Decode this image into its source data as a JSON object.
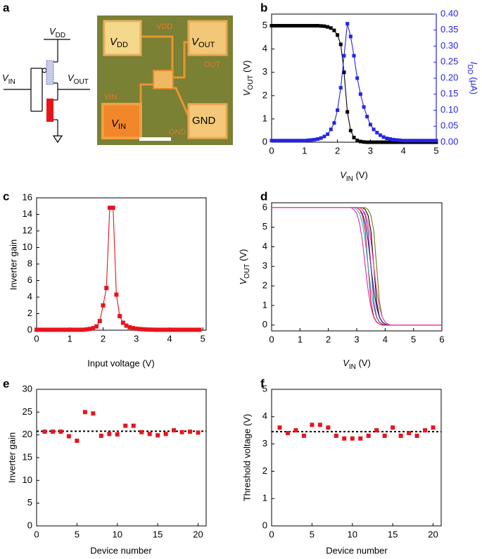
{
  "panel_labels": [
    "a",
    "b",
    "c",
    "d",
    "e",
    "f"
  ],
  "diagram": {
    "circuit": {
      "vdd": [
        "V",
        "DD"
      ],
      "vin": [
        "V",
        "IN"
      ],
      "vout": [
        "V",
        "OUT"
      ]
    },
    "micrograph": {
      "pads": [
        [
          "V",
          "DD"
        ],
        [
          "V",
          "OUT"
        ],
        [
          "V",
          "IN"
        ],
        "GND"
      ],
      "markings": [
        "VDD",
        "OUT",
        "VIN",
        "GND"
      ]
    }
  },
  "chart_data": [
    {
      "type": "line",
      "x": [
        0,
        0.1,
        0.2,
        0.3,
        0.4,
        0.5,
        0.6,
        0.7,
        0.8,
        0.9,
        1.0,
        1.1,
        1.2,
        1.3,
        1.4,
        1.5,
        1.6,
        1.7,
        1.8,
        1.9,
        2.0,
        2.1,
        2.2,
        2.3,
        2.4,
        2.5,
        2.6,
        2.7,
        2.8,
        2.9,
        3.0,
        3.1,
        3.2,
        3.3,
        3.4,
        3.5,
        3.6,
        3.7,
        3.8,
        3.9,
        4.0,
        4.1,
        4.2,
        4.3,
        4.4,
        4.5,
        4.6,
        4.7,
        4.8,
        4.9,
        5.0
      ],
      "series": [
        {
          "color": "#000000",
          "marker": "square",
          "values": [
            5,
            5,
            5,
            5,
            5,
            5,
            5,
            5,
            5,
            5,
            5,
            5,
            5,
            5,
            5,
            4.99,
            4.98,
            4.95,
            4.9,
            4.8,
            4.6,
            4.2,
            3.0,
            1.3,
            0.5,
            0.2,
            0.08,
            0.03,
            0.01,
            0,
            0,
            0,
            0,
            0,
            0,
            0,
            0,
            0,
            0,
            0,
            0,
            0,
            0,
            0,
            0,
            0,
            0,
            0,
            0,
            0,
            0
          ]
        },
        {
          "color": "#2424e8",
          "marker": "square",
          "axis": "y2",
          "values": [
            0.005,
            0.005,
            0.005,
            0.005,
            0.005,
            0.005,
            0.005,
            0.005,
            0.005,
            0.005,
            0.005,
            0.006,
            0.007,
            0.008,
            0.01,
            0.013,
            0.018,
            0.025,
            0.04,
            0.06,
            0.1,
            0.17,
            0.27,
            0.37,
            0.33,
            0.27,
            0.2,
            0.15,
            0.11,
            0.08,
            0.055,
            0.04,
            0.03,
            0.022,
            0.016,
            0.012,
            0.01,
            0.008,
            0.007,
            0.006,
            0.005,
            0.005,
            0.005,
            0.005,
            0.005,
            0.005,
            0.005,
            0.005,
            0.005,
            0.005,
            0.005
          ]
        }
      ],
      "xlim": [
        0,
        5
      ],
      "xticks": [
        0,
        1,
        2,
        3,
        4,
        5
      ],
      "ylim": [
        0,
        5.5
      ],
      "yticks": [
        0,
        1,
        2,
        3,
        4,
        5
      ],
      "y2lim": [
        0,
        0.4
      ],
      "y2ticks": [
        {
          "value": 0,
          "label": "0.00"
        },
        0.05,
        {
          "value": 0.1,
          "label": "0.10"
        },
        0.15,
        {
          "value": 0.2,
          "label": "0.20"
        },
        0.25,
        {
          "value": 0.3,
          "label": "0.30"
        },
        0.35,
        {
          "value": 0.4,
          "label": "0.40"
        }
      ],
      "y2color": "#2424e8",
      "xlabel": [
        "V",
        "IN",
        " (V)"
      ],
      "ylabel": [
        "V",
        "OUT",
        " (V)"
      ],
      "y2label": [
        "I",
        "DD",
        " (μA)"
      ]
    },
    {
      "type": "line",
      "x": [
        0,
        0.1,
        0.2,
        0.3,
        0.4,
        0.5,
        0.6,
        0.7,
        0.8,
        0.9,
        1.0,
        1.1,
        1.2,
        1.3,
        1.4,
        1.5,
        1.6,
        1.7,
        1.8,
        1.9,
        2.0,
        2.1,
        2.2,
        2.3,
        2.4,
        2.5,
        2.6,
        2.7,
        2.8,
        2.9,
        3.0,
        3.1,
        3.2,
        3.3,
        3.4,
        3.5,
        3.6,
        3.7,
        3.8,
        3.9,
        4.0,
        4.1,
        4.2,
        4.3,
        4.4,
        4.5,
        4.6,
        4.7,
        4.8,
        4.9
      ],
      "series": [
        {
          "color": "#e8141c",
          "marker": "square",
          "values": [
            0.05,
            0.05,
            0.05,
            0.05,
            0.05,
            0.05,
            0.05,
            0.05,
            0.05,
            0.05,
            0.05,
            0.05,
            0.05,
            0.05,
            0.05,
            0.1,
            0.15,
            0.25,
            0.45,
            1.1,
            3.0,
            5.1,
            14.8,
            14.8,
            4.3,
            1.7,
            0.9,
            0.55,
            0.35,
            0.25,
            0.18,
            0.14,
            0.11,
            0.09,
            0.07,
            0.06,
            0.05,
            0.05,
            0.05,
            0.05,
            0.05,
            0.05,
            0.05,
            0.05,
            0.05,
            0.05,
            0.05,
            0.05,
            0.05,
            0.05
          ]
        }
      ],
      "xlim": [
        0,
        5.1
      ],
      "xticks": [
        0,
        1,
        2,
        3,
        4,
        5
      ],
      "ylim": [
        0,
        16
      ],
      "yticks": [
        0,
        2,
        4,
        6,
        8,
        10,
        12,
        14,
        16
      ],
      "xlabel": "Input voltage (V)",
      "ylabel": "Inverter gain"
    },
    {
      "type": "line",
      "x": [
        0,
        1,
        2,
        2.5,
        2.8,
        2.9,
        3.0,
        3.1,
        3.2,
        3.3,
        3.4,
        3.5,
        3.6,
        3.7,
        3.8,
        3.9,
        4.0,
        4.1,
        4.2,
        4.4,
        4.7,
        5,
        6
      ],
      "series": [
        {
          "color": "#000000",
          "values": [
            6,
            6,
            6,
            6,
            6,
            6,
            6,
            6,
            6,
            5.9,
            5.6,
            4.8,
            3.0,
            1.2,
            0.4,
            0.15,
            0.05,
            0,
            0,
            0,
            0,
            0,
            0
          ]
        },
        {
          "color": "#1c1c80",
          "values": [
            6,
            6,
            6,
            6,
            6,
            6,
            6,
            5.9,
            5.7,
            5.2,
            4.3,
            3.0,
            1.8,
            0.9,
            0.4,
            0.15,
            0.05,
            0,
            0,
            0,
            0,
            0,
            0
          ]
        },
        {
          "color": "#e01ec8",
          "values": [
            6,
            6,
            6,
            6,
            6,
            5.9,
            5.7,
            5.2,
            4.3,
            3.0,
            1.8,
            0.9,
            0.4,
            0.15,
            0.05,
            0,
            0,
            0,
            0,
            0,
            0,
            0,
            0
          ]
        },
        {
          "color": "#e8141c",
          "values": [
            6,
            6,
            6,
            6,
            6,
            6,
            6,
            5.9,
            5.6,
            4.8,
            3.0,
            1.2,
            0.4,
            0.15,
            0.05,
            0,
            0,
            0,
            0,
            0,
            0,
            0,
            0
          ]
        },
        {
          "color": "#6b7a10",
          "values": [
            6,
            6,
            6,
            6,
            6,
            6,
            6,
            6,
            6,
            6,
            5.9,
            5.6,
            4.8,
            3.0,
            1.2,
            0.4,
            0.15,
            0.05,
            0,
            0,
            0,
            0,
            0
          ]
        },
        {
          "color": "#18b8c8",
          "values": [
            6,
            6,
            6,
            6,
            6,
            6,
            5.9,
            5.7,
            5.2,
            4.3,
            3.0,
            1.8,
            0.9,
            0.4,
            0.15,
            0.05,
            0,
            0,
            0,
            0,
            0,
            0,
            0
          ]
        },
        {
          "color": "#7a2a9a",
          "values": [
            6,
            6,
            6,
            6,
            6,
            6,
            6,
            6,
            5.9,
            5.6,
            4.8,
            3.0,
            1.2,
            0.4,
            0.15,
            0.05,
            0,
            0,
            0,
            0,
            0,
            0,
            0
          ]
        },
        {
          "color": "#ff3fa0",
          "values": [
            6,
            6,
            6,
            6,
            6,
            6,
            6,
            6,
            5.9,
            5.7,
            5.2,
            4.3,
            3.0,
            1.8,
            0.9,
            0.4,
            0.15,
            0.05,
            0,
            0,
            0,
            0,
            0
          ]
        }
      ],
      "xlim": [
        0,
        6
      ],
      "xticks": [
        0,
        1,
        2,
        3,
        4,
        5,
        6
      ],
      "ylim": [
        -0.3,
        6.25
      ],
      "yticks": [
        0,
        1,
        2,
        3,
        4,
        5,
        6
      ],
      "xlabel": [
        "V",
        "IN",
        " (V)"
      ],
      "ylabel": [
        "V",
        "OUT",
        " (V)"
      ]
    },
    {
      "type": "scatter",
      "x": [
        1,
        2,
        3,
        4,
        5,
        6,
        7,
        8,
        9,
        10,
        11,
        12,
        13,
        14,
        15,
        16,
        17,
        18,
        19,
        20
      ],
      "series": [
        {
          "color": "#e8141c",
          "marker": "square",
          "values": [
            20.7,
            20.7,
            20.7,
            19.7,
            18.7,
            25,
            24.7,
            19.8,
            20.2,
            20.1,
            22,
            22,
            20.6,
            20.2,
            19.9,
            20.2,
            21,
            20.6,
            20.7,
            20.5
          ]
        }
      ],
      "reference_line": 20.8,
      "xlim": [
        0,
        21
      ],
      "xticks": [
        0,
        5,
        10,
        15,
        20
      ],
      "ylim": [
        0,
        30
      ],
      "yticks": [
        0,
        5,
        10,
        15,
        20,
        25,
        30
      ],
      "xlabel": "Device number",
      "ylabel": "Inverter gain"
    },
    {
      "type": "scatter",
      "x": [
        1,
        2,
        3,
        4,
        5,
        6,
        7,
        8,
        9,
        10,
        11,
        12,
        13,
        14,
        15,
        16,
        17,
        18,
        19,
        20
      ],
      "series": [
        {
          "color": "#e8141c",
          "marker": "square",
          "values": [
            3.6,
            3.4,
            3.5,
            3.3,
            3.7,
            3.7,
            3.6,
            3.3,
            3.2,
            3.2,
            3.2,
            3.3,
            3.5,
            3.3,
            3.6,
            3.3,
            3.4,
            3.3,
            3.5,
            3.6
          ]
        }
      ],
      "reference_line": 3.45,
      "xlim": [
        0,
        21
      ],
      "xticks": [
        0,
        5,
        10,
        15,
        20
      ],
      "ylim": [
        0,
        5
      ],
      "yticks": [
        0,
        1,
        2,
        3,
        4,
        5
      ],
      "xlabel": "Device number",
      "ylabel": "Threshold voltage (V)"
    }
  ]
}
